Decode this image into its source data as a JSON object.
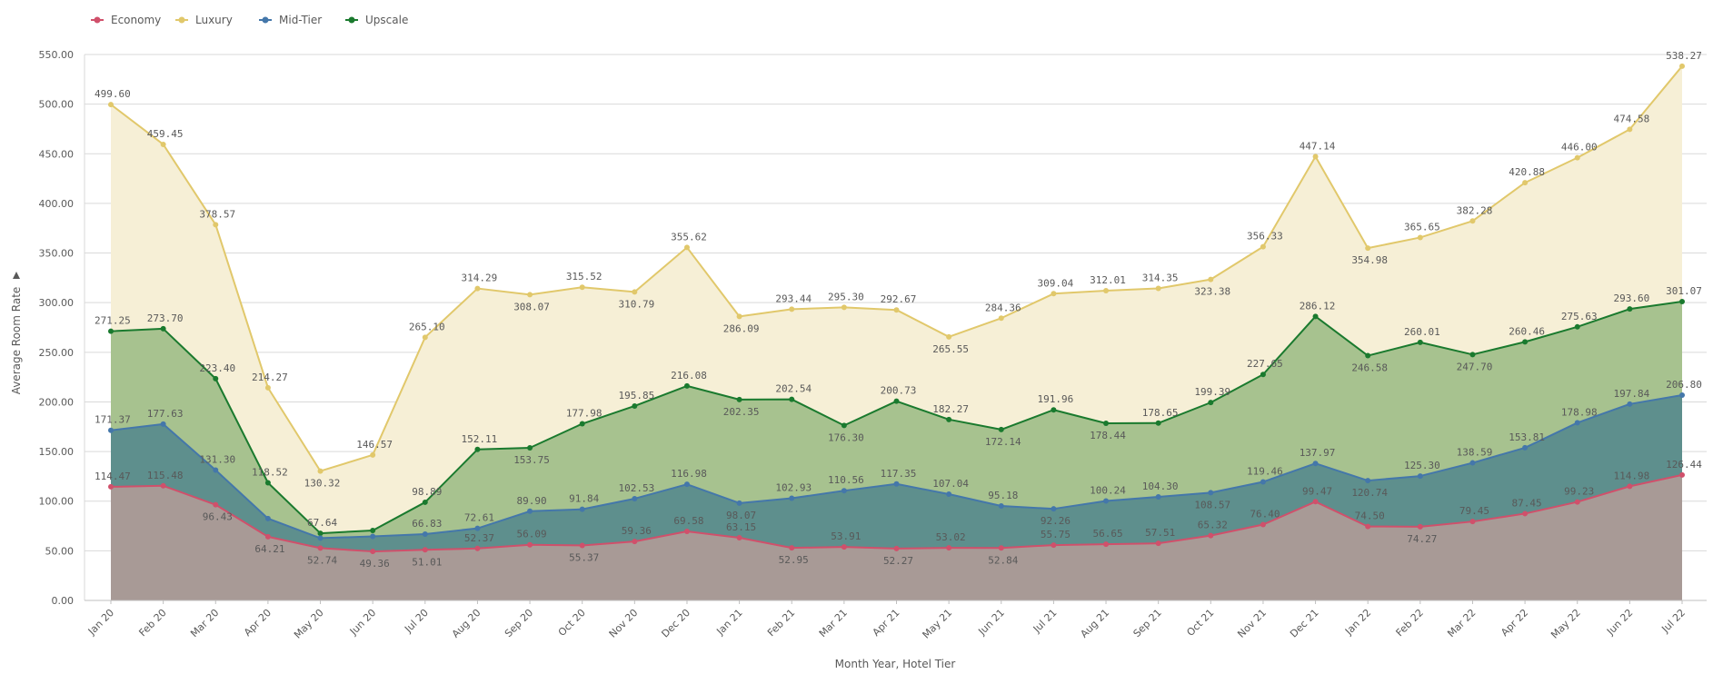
{
  "chart_data": {
    "type": "area",
    "xlabel": "Month Year, Hotel Tier",
    "ylabel": "Average Room Rate",
    "ylabel_icon": "dropdown-triangle-icon",
    "ylim": [
      0,
      550
    ],
    "yticks": [
      "0.00",
      "50.00",
      "100.00",
      "150.00",
      "200.00",
      "250.00",
      "300.00",
      "350.00",
      "400.00",
      "450.00",
      "500.00",
      "550.00"
    ],
    "grid": true,
    "legend_position": "top-left",
    "categories": [
      "Jan 20",
      "Feb 20",
      "Mar 20",
      "Apr 20",
      "May 20",
      "Jun 20",
      "Jul 20",
      "Aug 20",
      "Sep 20",
      "Oct 20",
      "Nov 20",
      "Dec 20",
      "Jan 21",
      "Feb 21",
      "Mar 21",
      "Apr 21",
      "May 21",
      "Jun 21",
      "Jul 21",
      "Aug 21",
      "Sep 21",
      "Oct 21",
      "Nov 21",
      "Dec 21",
      "Jan 22",
      "Feb 22",
      "Mar 22",
      "Apr 22",
      "May 22",
      "Jun 22",
      "Jul 22"
    ],
    "series": [
      {
        "name": "Economy",
        "color": "#d0506b",
        "fill": "#a89a96",
        "values": [
          "114.47",
          "115.48",
          "96.43",
          "64.21",
          "52.74",
          "49.36",
          "51.01",
          "52.37",
          "56.09",
          "55.37",
          "59.36",
          "69.58",
          "63.15",
          "52.95",
          "53.91",
          "52.27",
          "53.02",
          "52.84",
          "55.75",
          "56.65",
          "57.51",
          "65.32",
          "76.40",
          "99.47",
          "74.50",
          "74.27",
          "79.45",
          "87.45",
          "99.23",
          "114.98",
          "126.44"
        ],
        "label_pos": [
          "above",
          "above",
          "below",
          "below",
          "below",
          "below",
          "below",
          "above",
          "above",
          "below",
          "above",
          "above",
          "above",
          "below",
          "above",
          "below",
          "above",
          "below",
          "above",
          "above",
          "above",
          "above",
          "above",
          "above",
          "above",
          "below",
          "above",
          "above",
          "above",
          "above",
          "above"
        ]
      },
      {
        "name": "Luxury",
        "color": "#e1c86b",
        "fill": "#f6efd6",
        "values": [
          "499.60",
          "459.45",
          "378.57",
          "214.27",
          "130.32",
          "146.57",
          "265.10",
          "314.29",
          "308.07",
          "315.52",
          "310.79",
          "355.62",
          "286.09",
          "293.44",
          "295.30",
          "292.67",
          "265.55",
          "284.36",
          "309.04",
          "312.01",
          "314.35",
          "323.38",
          "356.33",
          "447.14",
          "354.98",
          "365.65",
          "382.28",
          "420.88",
          "446.00",
          "474.58",
          "538.27"
        ],
        "label_pos": [
          "above",
          "above",
          "above",
          "above",
          "below",
          "above",
          "above",
          "above",
          "below",
          "above",
          "below",
          "above",
          "below",
          "above",
          "above",
          "above",
          "below",
          "above",
          "above",
          "above",
          "above",
          "below",
          "above",
          "above",
          "below",
          "above",
          "above",
          "above",
          "above",
          "above",
          "above"
        ]
      },
      {
        "name": "Mid-Tier",
        "color": "#4477aa",
        "fill": "#5e8f8d",
        "values": [
          "171.37",
          "177.63",
          "131.30",
          "82.50",
          "62.80",
          "64.50",
          "66.83",
          "72.61",
          "89.90",
          "91.84",
          "102.53",
          "116.98",
          "98.07",
          "102.93",
          "110.56",
          "117.35",
          "107.04",
          "95.18",
          "92.26",
          "100.24",
          "104.30",
          "108.57",
          "119.46",
          "137.97",
          "120.74",
          "125.30",
          "138.59",
          "153.81",
          "178.98",
          "197.84",
          "206.80"
        ],
        "label_pos": [
          "above",
          "above",
          "above",
          "none",
          "none",
          "none",
          "above",
          "above",
          "above",
          "above",
          "above",
          "above",
          "below",
          "above",
          "above",
          "above",
          "above",
          "above",
          "below",
          "above",
          "above",
          "below",
          "above",
          "above",
          "below",
          "above",
          "above",
          "above",
          "above",
          "above",
          "above"
        ]
      },
      {
        "name": "Upscale",
        "color": "#1a7a2e",
        "fill": "#a7c28f",
        "values": [
          "271.25",
          "273.70",
          "223.40",
          "118.52",
          "67.64",
          "70.50",
          "98.89",
          "152.11",
          "153.75",
          "177.98",
          "195.85",
          "216.08",
          "202.35",
          "202.54",
          "176.30",
          "200.73",
          "182.27",
          "172.14",
          "191.96",
          "178.44",
          "178.65",
          "199.39",
          "227.65",
          "286.12",
          "246.58",
          "260.01",
          "247.70",
          "260.46",
          "275.63",
          "293.60",
          "301.07"
        ],
        "label_pos": [
          "above",
          "above",
          "above",
          "above",
          "above",
          "none",
          "above",
          "above",
          "below",
          "above",
          "above",
          "above",
          "below",
          "above",
          "below",
          "above",
          "above",
          "below",
          "above",
          "below",
          "above",
          "above",
          "above",
          "above",
          "below",
          "above",
          "below",
          "above",
          "above",
          "above",
          "above"
        ]
      }
    ]
  }
}
